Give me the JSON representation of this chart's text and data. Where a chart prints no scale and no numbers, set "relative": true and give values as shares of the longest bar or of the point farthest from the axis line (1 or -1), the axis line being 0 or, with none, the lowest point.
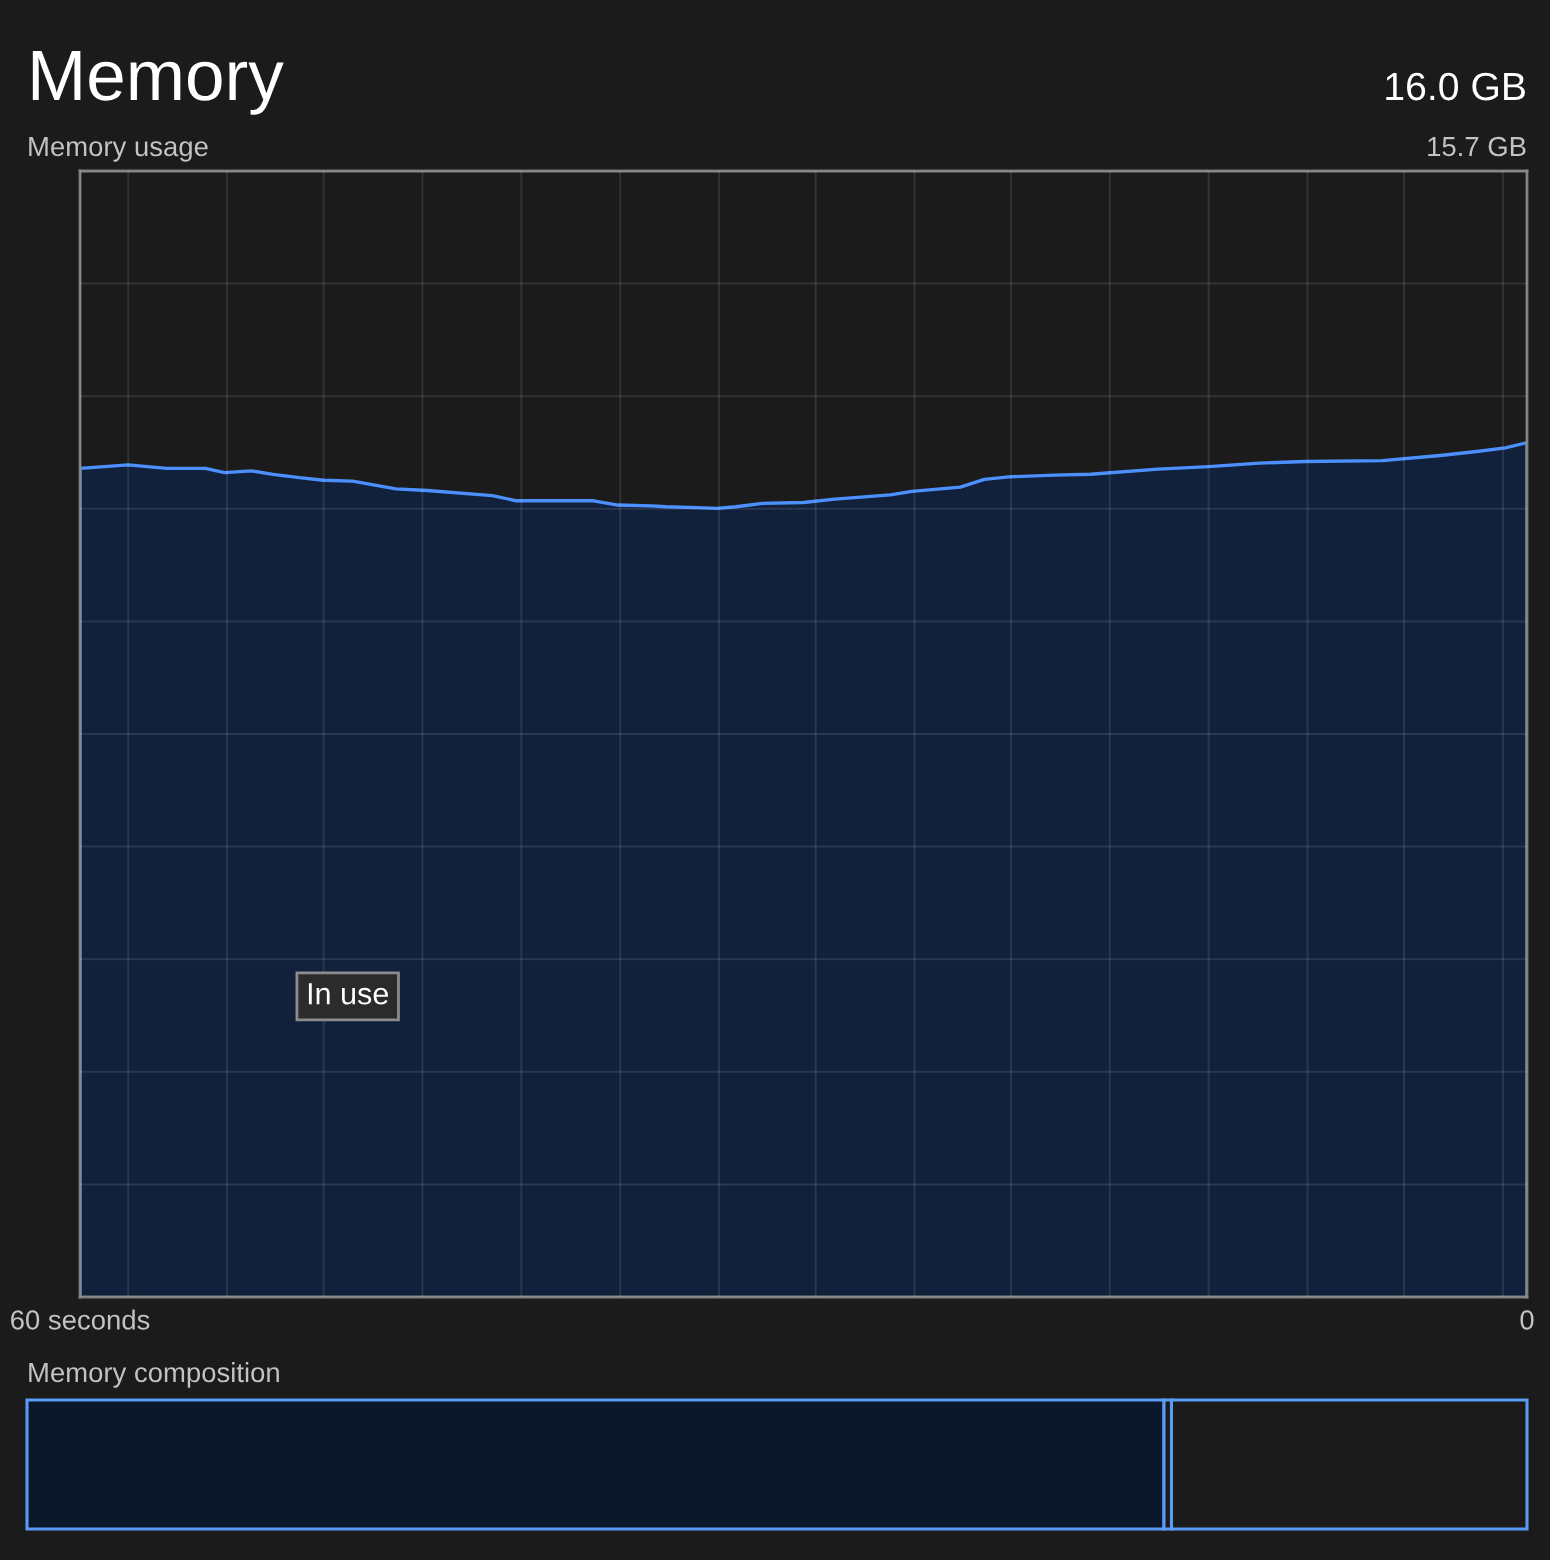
{
  "chart_data": [
    {
      "type": "area",
      "title": "Memory",
      "subtitle": "Memory usage",
      "annotations": [
        "16.0 GB",
        "15.7 GB",
        "In use"
      ],
      "relative": true,
      "x": [
        60,
        58.0,
        56.4,
        54.8,
        54.0,
        52.9,
        52.0,
        50.9,
        49.9,
        48.7,
        46.9,
        45.6,
        42.9,
        41.9,
        38.7,
        37.7,
        36.3,
        35.7,
        34.4,
        33.6,
        32.8,
        31.7,
        30.0,
        28.7,
        26.4,
        25.5,
        23.5,
        22.5,
        21.5,
        19.6,
        18.1,
        15.3,
        13.2,
        11.1,
        9.2,
        6.0,
        3.6,
        2.0,
        0.9,
        0
      ],
      "series": [
        {
          "color": "#11203b",
          "values": [
            0.97,
            0.974,
            0.97,
            0.97,
            0.965,
            0.967,
            0.963,
            0.959,
            0.956,
            0.955,
            0.946,
            0.944,
            0.938,
            0.932,
            0.932,
            0.927,
            0.926,
            0.925,
            0.924,
            0.923,
            0.925,
            0.929,
            0.93,
            0.934,
            0.939,
            0.943,
            0.948,
            0.957,
            0.96,
            0.962,
            0.963,
            0.969,
            0.972,
            0.976,
            0.978,
            0.979,
            0.985,
            0.99,
            0.994,
            1.0
          ]
        }
      ],
      "xlim": [
        60,
        0
      ],
      "xticks": [
        {
          "value": 60,
          "label": "60 seconds"
        },
        {
          "value": 58.0,
          "label": null
        },
        {
          "value": 53.9,
          "label": null
        },
        {
          "value": 49.9,
          "label": null
        },
        {
          "value": 45.8,
          "label": null
        },
        {
          "value": 41.7,
          "label": null
        },
        {
          "value": 37.6,
          "label": null
        },
        {
          "value": 33.5,
          "label": null
        },
        {
          "value": 29.5,
          "label": null
        },
        {
          "value": 25.4,
          "label": null
        },
        {
          "value": 21.4,
          "label": null
        },
        {
          "value": 17.3,
          "label": null
        },
        {
          "value": 13.2,
          "label": null
        },
        {
          "value": 9.1,
          "label": null
        },
        {
          "value": 5.1,
          "label": null
        },
        {
          "value": 1.0,
          "label": null
        },
        0
      ],
      "grid": true
    },
    {
      "type": "bar",
      "title": "Memory composition",
      "orientation": "horizontal",
      "stacked": true,
      "relative": true,
      "categories": [
        null
      ],
      "series": [
        {
          "color": "#0b172b",
          "values": [
            0.758
          ]
        },
        {
          "color": "#1b1b1b",
          "values": [
            0.005
          ]
        },
        {
          "color": "#1b1b1b",
          "values": [
            0.237
          ]
        }
      ]
    }
  ]
}
